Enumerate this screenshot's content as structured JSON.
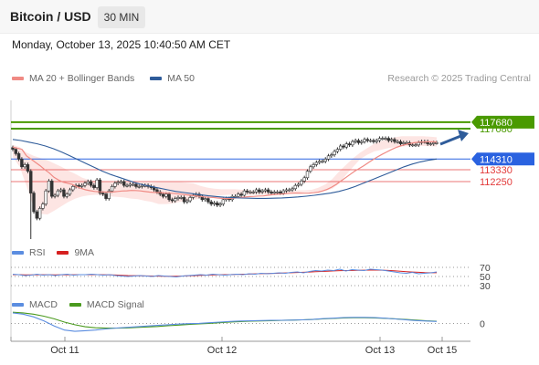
{
  "header": {
    "pair": "Bitcoin / USD",
    "timeframe": "30 MIN",
    "datetime": "Monday, October 13, 2025 10:40:50 AM CET"
  },
  "legend": {
    "main": [
      {
        "label": "MA 20 + Bollinger Bands",
        "color": "#f08a84"
      },
      {
        "label": "MA 50",
        "color": "#2f5c9a"
      }
    ],
    "rsi": [
      {
        "label": "RSI",
        "color": "#5b8de0"
      },
      {
        "label": "9MA",
        "color": "#d62020"
      }
    ],
    "macd": [
      {
        "label": "MACD",
        "color": "#5b8de0"
      },
      {
        "label": "MACD Signal",
        "color": "#4a9a1e"
      }
    ]
  },
  "credit": "Research © 2025 Trading Central",
  "colors": {
    "up": "#ffffff",
    "down": "#333333",
    "band": "#fde0de",
    "resistance": "#4a9a00",
    "support_blue": "#2a62e0",
    "support_red": "#e33b3b"
  },
  "chart_data": {
    "type": "candlestick",
    "x_ticks": [
      "Oct 11",
      "Oct 12",
      "Oct 13",
      "Oct 15"
    ],
    "levels": [
      {
        "value": 117680,
        "label": "117680",
        "color": "#4a9a00",
        "style": "tag"
      },
      {
        "value": 117080,
        "label": "117080",
        "color": "#4a9a00",
        "style": "line"
      },
      {
        "value": 114310,
        "label": "114310",
        "color": "#2a62e0",
        "style": "tag"
      },
      {
        "value": 113330,
        "label": "113330",
        "color": "#e33b3b",
        "style": "text"
      },
      {
        "value": 112250,
        "label": "112250",
        "color": "#e33b3b",
        "style": "text"
      }
    ],
    "close": [
      115200,
      114800,
      114300,
      113600,
      113800,
      113200,
      111200,
      109500,
      108900,
      109800,
      110200,
      111400,
      112300,
      110900,
      111000,
      111400,
      111500,
      110900,
      111100,
      111500,
      111800,
      111900,
      111800,
      111900,
      112100,
      112250,
      111900,
      111700,
      112400,
      111200,
      111100,
      110700,
      111400,
      111800,
      112100,
      112200,
      112250,
      111900,
      111900,
      112000,
      112000,
      111800,
      111800,
      111900,
      111900,
      111800,
      111700,
      111500,
      111300,
      111100,
      110900,
      111100,
      110600,
      110500,
      110700,
      110800,
      110800,
      110400,
      110500,
      110800,
      111000,
      111100,
      110900,
      110600,
      110700,
      110400,
      110200,
      110300,
      110100,
      110200,
      110600,
      110700,
      110600,
      110900,
      110900,
      111100,
      111000,
      111400,
      111300,
      111300,
      111300,
      111500,
      111300,
      111400,
      111500,
      111300,
      111200,
      111300,
      111300,
      111200,
      111400,
      111500,
      111500,
      111600,
      111900,
      112000,
      112300,
      112600,
      113200,
      113600,
      113800,
      114000,
      114100,
      114100,
      114300,
      114600,
      114700,
      115000,
      115200,
      115500,
      115400,
      115700,
      115600,
      115900,
      116000,
      115800,
      115900,
      116100,
      116000,
      116000,
      115900,
      116000,
      116200,
      116200,
      116200,
      116000,
      116100,
      115900,
      115900,
      115700,
      115800,
      115800,
      115600,
      115600,
      115600,
      115800,
      115900,
      115900,
      115700,
      115700,
      115800,
      115800
    ],
    "ma20": [
      115400,
      115300,
      115200,
      114600,
      114300,
      114000,
      113700,
      113350,
      113050,
      112650,
      112400,
      112200,
      112100,
      112000,
      111800,
      111630,
      111500,
      111420,
      111350,
      111320,
      111300,
      111290,
      111300,
      111350,
      111390,
      111410,
      111440,
      111430,
      111400,
      111340,
      111290,
      111260,
      111250,
      111220,
      111200,
      111180,
      111140,
      111100,
      111050,
      111000,
      110950,
      110900,
      110850,
      110820,
      110800,
      110750,
      110720,
      110700,
      110720,
      110760,
      110800,
      110840,
      110880,
      110900,
      110930,
      110940,
      111000,
      111050,
      111080,
      111110,
      111150,
      111180,
      111200,
      111200,
      111190,
      111200,
      111230,
      111280,
      111400,
      111550,
      111750,
      112000,
      112300,
      112600,
      112900,
      113200,
      113450,
      113700,
      113980,
      114250,
      114500,
      114730,
      114950,
      115160,
      115350,
      115500,
      115620,
      115720,
      115800,
      115850,
      115870,
      115880,
      115880,
      115870
    ],
    "bb_upper": [
      115600,
      115400,
      114900,
      114600,
      114400,
      114200,
      113900,
      113600,
      113250,
      112950,
      112600,
      112400,
      112300,
      112250,
      112200,
      112150,
      112150,
      112150,
      112150,
      112150,
      112150,
      112200,
      112200,
      112200,
      112200,
      112150,
      112080,
      111850,
      111700,
      111600,
      111550,
      111550,
      111550,
      111500,
      111450,
      111400,
      111350,
      111350,
      111350,
      111400,
      111400,
      111450,
      111450,
      111500,
      111700,
      112000,
      112500,
      113200,
      113800,
      114400,
      114900,
      115300,
      115700,
      115950,
      116150,
      116300,
      116400,
      116400,
      116400,
      116400,
      116350,
      116300
    ],
    "bb_lower": [
      114500,
      113600,
      111800,
      109900,
      109300,
      109250,
      109600,
      110000,
      110400,
      110700,
      110900,
      111000,
      111050,
      111000,
      110900,
      110850,
      110800,
      110700,
      110650,
      110500,
      110400,
      110200,
      110200,
      110250,
      110400,
      110500,
      110600,
      110700,
      110800,
      110950,
      111000,
      111050,
      111050,
      111050,
      111050,
      111050,
      111050,
      111050,
      111100,
      111100,
      111150,
      111250,
      111300,
      111300,
      111300,
      111400,
      111600,
      112100,
      112900,
      113600,
      114300,
      114700,
      115000,
      115150,
      115300,
      115400,
      115450,
      115500,
      115500,
      115500,
      115480,
      115450
    ],
    "ma50": [
      116100,
      116000,
      115850,
      115700,
      115500,
      115250,
      114950,
      114600,
      114250,
      113900,
      113550,
      113200,
      112900,
      112650,
      112400,
      112150,
      111950,
      111800,
      111650,
      111500,
      111350,
      111250,
      111150,
      111050,
      110950,
      110880,
      110820,
      110780,
      110750,
      110730,
      110720,
      110720,
      110730,
      110760,
      110800,
      110850,
      110920,
      111000,
      111100,
      111200,
      111350,
      111550,
      111800,
      112100,
      112400,
      112700,
      113000,
      113300,
      113600,
      113850,
      114050,
      114200,
      114310
    ],
    "rsi": [
      55,
      54,
      52,
      53,
      55,
      53,
      54,
      52,
      54,
      55,
      53,
      54,
      54,
      55,
      54,
      53,
      54,
      52,
      51,
      50,
      51,
      52,
      51,
      50,
      52,
      51,
      50,
      49,
      51,
      52,
      53,
      54,
      53,
      55,
      54,
      53,
      54,
      55,
      54,
      56,
      55,
      57,
      56,
      57,
      58,
      57,
      59,
      60,
      58,
      61,
      63,
      62,
      64,
      63,
      66,
      62,
      65,
      64,
      63,
      66,
      65,
      64,
      62,
      60,
      58,
      57,
      59,
      56,
      57,
      58,
      60
    ],
    "rsi_ma": [
      54,
      54,
      53.5,
      53.5,
      54,
      53.8,
      53.8,
      53.5,
      53.8,
      54,
      53.8,
      54,
      54,
      54.2,
      54,
      53.8,
      53.6,
      53.3,
      52.6,
      52,
      51.8,
      51.5,
      51.2,
      51,
      50.8,
      50.6,
      50.5,
      50.5,
      51,
      51.5,
      52,
      52.6,
      53,
      53.5,
      53.8,
      54,
      54.3,
      54.7,
      55,
      55.3,
      55.7,
      56.1,
      56.4,
      56.9,
      57.3,
      57.8,
      58.3,
      58.9,
      59.3,
      59.9,
      60.5,
      61,
      61.6,
      62.1,
      62.7,
      63,
      63.3,
      63.6,
      63.8,
      64,
      64,
      63.8,
      63.3,
      62.5,
      61.6,
      60.6,
      59.9,
      59.1,
      58.5,
      58.2,
      58.2
    ],
    "rsi_levels": [
      70,
      50,
      30
    ],
    "macd": [
      0.8,
      0.7,
      0.5,
      0.2,
      -0.2,
      -0.5,
      -0.6,
      -0.55,
      -0.5,
      -0.42,
      -0.35,
      -0.3,
      -0.25,
      -0.2,
      -0.15,
      -0.1,
      -0.05,
      -0.02,
      0.0,
      0.05,
      0.1,
      0.15,
      0.18,
      0.2,
      0.22,
      0.23,
      0.24,
      0.25,
      0.27,
      0.3,
      0.36,
      0.4,
      0.44,
      0.46,
      0.46,
      0.44,
      0.4,
      0.34,
      0.28,
      0.22,
      0.18,
      0.15
    ],
    "macd_signal": [
      0.85,
      0.8,
      0.7,
      0.55,
      0.35,
      0.1,
      -0.1,
      -0.25,
      -0.33,
      -0.36,
      -0.36,
      -0.34,
      -0.3,
      -0.27,
      -0.23,
      -0.18,
      -0.13,
      -0.08,
      -0.04,
      0.0,
      0.05,
      0.1,
      0.14,
      0.17,
      0.19,
      0.21,
      0.23,
      0.25,
      0.27,
      0.3,
      0.34,
      0.38,
      0.41,
      0.43,
      0.43,
      0.42,
      0.39,
      0.35,
      0.3,
      0.25,
      0.2,
      0.17
    ],
    "macd_zero": 0,
    "macd_zero_label": "0"
  }
}
